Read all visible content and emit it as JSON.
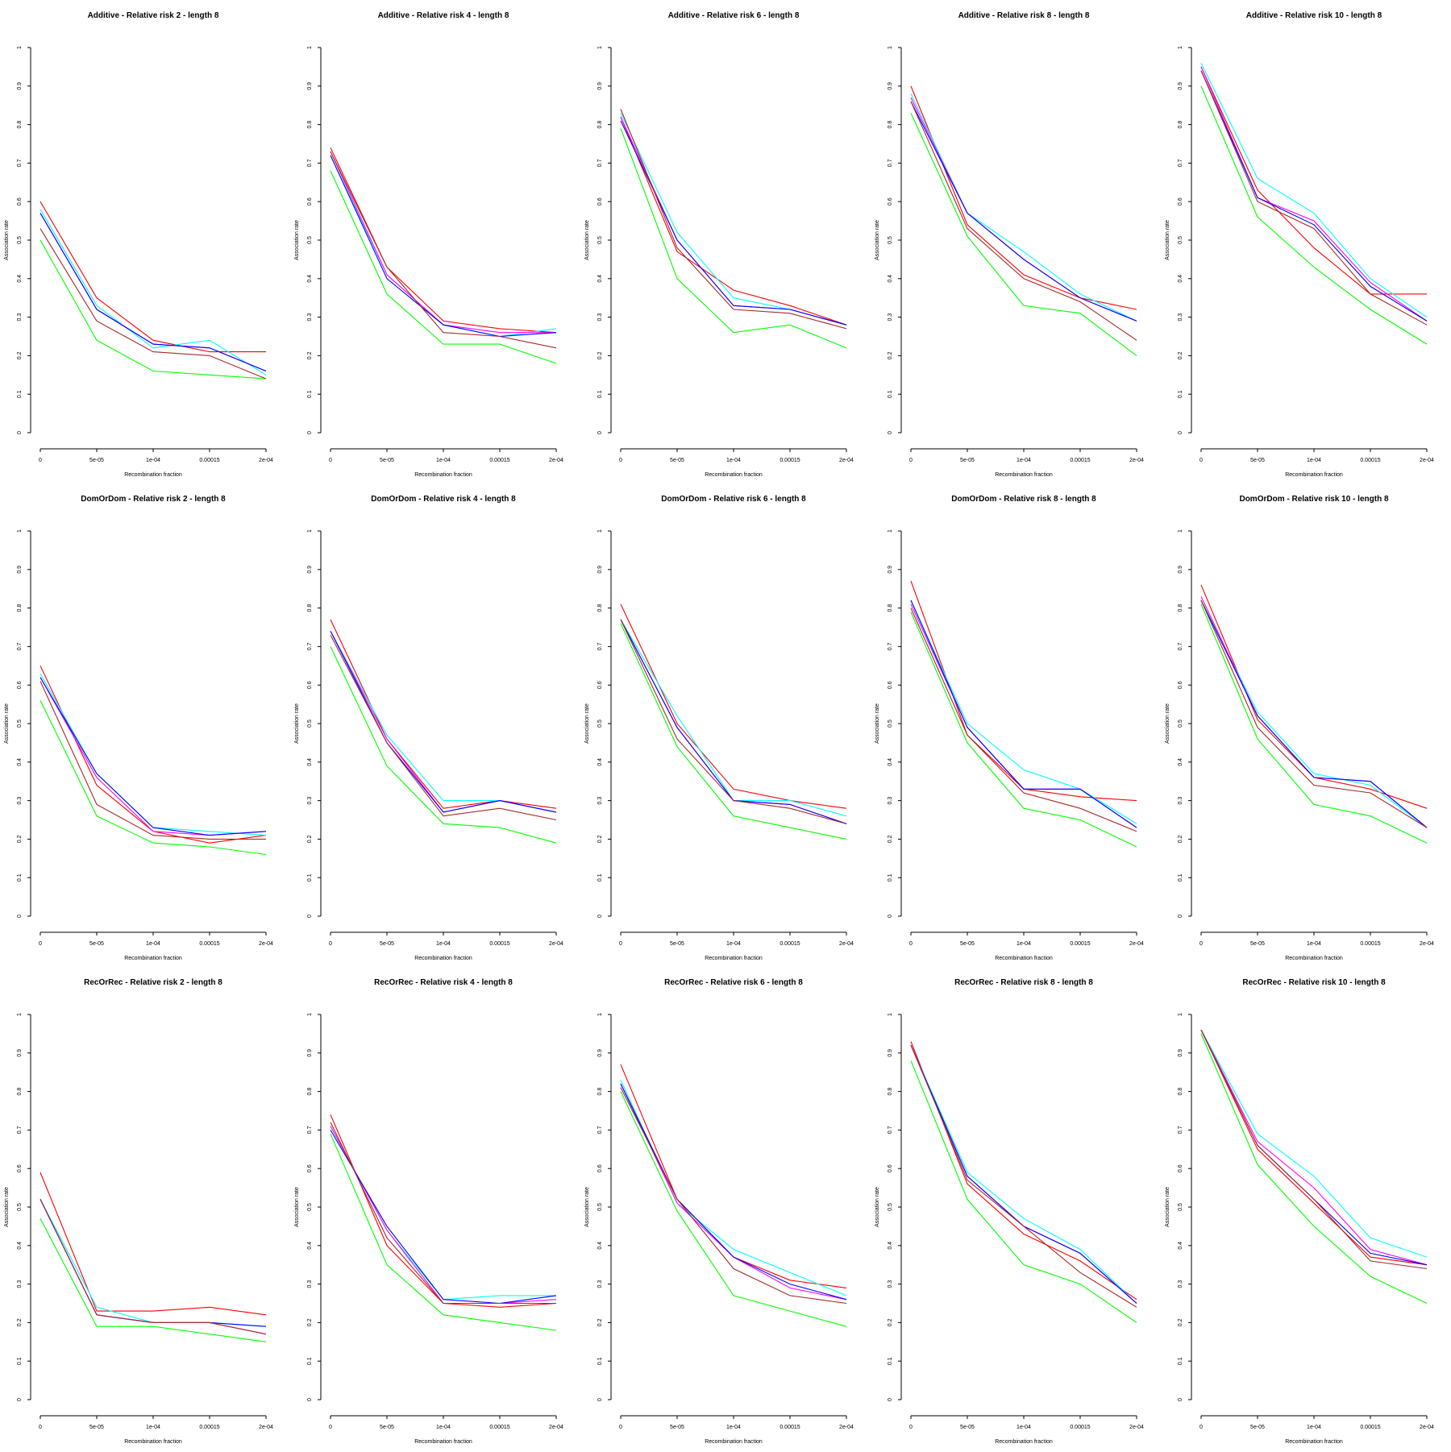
{
  "chart_data": {
    "type": "line",
    "layout": "3x5 grid of small multiples",
    "x": [
      "0",
      "5e-05",
      "1e-04",
      "0.00015",
      "2e-04"
    ],
    "xlabel": "Recombination fraction",
    "ylabel": "Association rate",
    "ylim": [
      0,
      1
    ],
    "yticks": [
      "0",
      "0.1",
      "0.2",
      "0.3",
      "0.4",
      "0.5",
      "0.6",
      "0.7",
      "0.8",
      "0.9",
      "1"
    ],
    "grid": false,
    "legend": "none",
    "series_colors": [
      "#ff0000",
      "#00ffff",
      "#ff00ff",
      "#0000ff",
      "#00ff00",
      "#a52a2a"
    ],
    "panels": [
      {
        "title": "Additive  - Relative risk 2 - length 8",
        "series": [
          {
            "color": "#ff0000",
            "values": [
              0.6,
              0.35,
              0.24,
              0.21,
              0.21
            ]
          },
          {
            "color": "#00ffff",
            "values": [
              0.58,
              0.33,
              0.22,
              0.24,
              0.15
            ]
          },
          {
            "color": "#ff00ff",
            "values": [
              0.57,
              0.32,
              0.23,
              0.22,
              0.16
            ]
          },
          {
            "color": "#0000ff",
            "values": [
              0.57,
              0.32,
              0.23,
              0.22,
              0.16
            ]
          },
          {
            "color": "#00ff00",
            "values": [
              0.5,
              0.24,
              0.16,
              0.15,
              0.14
            ]
          },
          {
            "color": "#a52a2a",
            "values": [
              0.53,
              0.29,
              0.21,
              0.2,
              0.14
            ]
          }
        ]
      },
      {
        "title": "Additive  - Relative risk 4 - length 8",
        "series": [
          {
            "color": "#ff0000",
            "values": [
              0.74,
              0.43,
              0.29,
              0.27,
              0.26
            ]
          },
          {
            "color": "#00ffff",
            "values": [
              0.72,
              0.41,
              0.28,
              0.25,
              0.27
            ]
          },
          {
            "color": "#ff00ff",
            "values": [
              0.73,
              0.41,
              0.28,
              0.26,
              0.26
            ]
          },
          {
            "color": "#0000ff",
            "values": [
              0.72,
              0.4,
              0.28,
              0.25,
              0.26
            ]
          },
          {
            "color": "#00ff00",
            "values": [
              0.68,
              0.36,
              0.23,
              0.23,
              0.18
            ]
          },
          {
            "color": "#a52a2a",
            "values": [
              0.73,
              0.43,
              0.26,
              0.25,
              0.22
            ]
          }
        ]
      },
      {
        "title": "Additive  - Relative risk 6 - length 8",
        "series": [
          {
            "color": "#ff0000",
            "values": [
              0.82,
              0.47,
              0.37,
              0.33,
              0.28
            ]
          },
          {
            "color": "#00ffff",
            "values": [
              0.83,
              0.52,
              0.35,
              0.32,
              0.28
            ]
          },
          {
            "color": "#ff00ff",
            "values": [
              0.82,
              0.5,
              0.33,
              0.32,
              0.28
            ]
          },
          {
            "color": "#0000ff",
            "values": [
              0.81,
              0.5,
              0.33,
              0.32,
              0.28
            ]
          },
          {
            "color": "#00ff00",
            "values": [
              0.79,
              0.4,
              0.26,
              0.28,
              0.22
            ]
          },
          {
            "color": "#a52a2a",
            "values": [
              0.84,
              0.48,
              0.32,
              0.31,
              0.27
            ]
          }
        ]
      },
      {
        "title": "Additive  - Relative risk 8 - length 8",
        "series": [
          {
            "color": "#ff0000",
            "values": [
              0.9,
              0.54,
              0.41,
              0.35,
              0.32
            ]
          },
          {
            "color": "#00ffff",
            "values": [
              0.88,
              0.57,
              0.47,
              0.36,
              0.29
            ]
          },
          {
            "color": "#ff00ff",
            "values": [
              0.87,
              0.57,
              0.45,
              0.35,
              0.29
            ]
          },
          {
            "color": "#0000ff",
            "values": [
              0.86,
              0.57,
              0.45,
              0.35,
              0.29
            ]
          },
          {
            "color": "#00ff00",
            "values": [
              0.83,
              0.51,
              0.33,
              0.31,
              0.2
            ]
          },
          {
            "color": "#a52a2a",
            "values": [
              0.86,
              0.53,
              0.4,
              0.34,
              0.24
            ]
          }
        ]
      },
      {
        "title": "Additive  - Relative risk 10 - length 8",
        "series": [
          {
            "color": "#ff0000",
            "values": [
              0.95,
              0.63,
              0.48,
              0.36,
              0.36
            ]
          },
          {
            "color": "#00ffff",
            "values": [
              0.96,
              0.66,
              0.57,
              0.4,
              0.3
            ]
          },
          {
            "color": "#ff00ff",
            "values": [
              0.95,
              0.61,
              0.55,
              0.39,
              0.29
            ]
          },
          {
            "color": "#0000ff",
            "values": [
              0.94,
              0.61,
              0.54,
              0.38,
              0.29
            ]
          },
          {
            "color": "#00ff00",
            "values": [
              0.9,
              0.56,
              0.43,
              0.32,
              0.23
            ]
          },
          {
            "color": "#a52a2a",
            "values": [
              0.94,
              0.6,
              0.53,
              0.36,
              0.28
            ]
          }
        ]
      },
      {
        "title": "DomOrDom  - Relative risk 2 - length 8",
        "series": [
          {
            "color": "#ff0000",
            "values": [
              0.65,
              0.34,
              0.22,
              0.19,
              0.21
            ]
          },
          {
            "color": "#00ffff",
            "values": [
              0.63,
              0.37,
              0.23,
              0.22,
              0.21
            ]
          },
          {
            "color": "#ff00ff",
            "values": [
              0.62,
              0.36,
              0.22,
              0.21,
              0.22
            ]
          },
          {
            "color": "#0000ff",
            "values": [
              0.62,
              0.37,
              0.23,
              0.21,
              0.22
            ]
          },
          {
            "color": "#00ff00",
            "values": [
              0.56,
              0.26,
              0.19,
              0.18,
              0.16
            ]
          },
          {
            "color": "#a52a2a",
            "values": [
              0.61,
              0.29,
              0.21,
              0.2,
              0.2
            ]
          }
        ]
      },
      {
        "title": "DomOrDom  - Relative risk 4 - length 8",
        "series": [
          {
            "color": "#ff0000",
            "values": [
              0.77,
              0.46,
              0.28,
              0.3,
              0.28
            ]
          },
          {
            "color": "#00ffff",
            "values": [
              0.74,
              0.47,
              0.3,
              0.3,
              0.27
            ]
          },
          {
            "color": "#ff00ff",
            "values": [
              0.74,
              0.46,
              0.27,
              0.3,
              0.27
            ]
          },
          {
            "color": "#0000ff",
            "values": [
              0.74,
              0.45,
              0.27,
              0.3,
              0.27
            ]
          },
          {
            "color": "#00ff00",
            "values": [
              0.7,
              0.39,
              0.24,
              0.23,
              0.19
            ]
          },
          {
            "color": "#a52a2a",
            "values": [
              0.73,
              0.45,
              0.26,
              0.28,
              0.25
            ]
          }
        ]
      },
      {
        "title": "DomOrDom  - Relative risk 6 - length 8",
        "series": [
          {
            "color": "#ff0000",
            "values": [
              0.81,
              0.5,
              0.33,
              0.3,
              0.28
            ]
          },
          {
            "color": "#00ffff",
            "values": [
              0.77,
              0.52,
              0.3,
              0.3,
              0.26
            ]
          },
          {
            "color": "#ff00ff",
            "values": [
              0.77,
              0.49,
              0.3,
              0.29,
              0.24
            ]
          },
          {
            "color": "#0000ff",
            "values": [
              0.77,
              0.49,
              0.3,
              0.29,
              0.24
            ]
          },
          {
            "color": "#00ff00",
            "values": [
              0.76,
              0.44,
              0.26,
              0.23,
              0.2
            ]
          },
          {
            "color": "#a52a2a",
            "values": [
              0.77,
              0.46,
              0.3,
              0.28,
              0.24
            ]
          }
        ]
      },
      {
        "title": "DomOrDom  - Relative risk 8 - length 8",
        "series": [
          {
            "color": "#ff0000",
            "values": [
              0.87,
              0.47,
              0.33,
              0.31,
              0.3
            ]
          },
          {
            "color": "#00ffff",
            "values": [
              0.82,
              0.5,
              0.38,
              0.33,
              0.24
            ]
          },
          {
            "color": "#ff00ff",
            "values": [
              0.81,
              0.49,
              0.33,
              0.33,
              0.23
            ]
          },
          {
            "color": "#0000ff",
            "values": [
              0.82,
              0.49,
              0.33,
              0.33,
              0.23
            ]
          },
          {
            "color": "#00ff00",
            "values": [
              0.79,
              0.45,
              0.28,
              0.25,
              0.18
            ]
          },
          {
            "color": "#a52a2a",
            "values": [
              0.8,
              0.47,
              0.32,
              0.28,
              0.22
            ]
          }
        ]
      },
      {
        "title": "DomOrDom  - Relative risk 10 - length 8",
        "series": [
          {
            "color": "#ff0000",
            "values": [
              0.86,
              0.51,
              0.36,
              0.33,
              0.28
            ]
          },
          {
            "color": "#00ffff",
            "values": [
              0.82,
              0.53,
              0.37,
              0.34,
              0.23
            ]
          },
          {
            "color": "#ff00ff",
            "values": [
              0.83,
              0.52,
              0.36,
              0.35,
              0.23
            ]
          },
          {
            "color": "#0000ff",
            "values": [
              0.82,
              0.52,
              0.36,
              0.35,
              0.23
            ]
          },
          {
            "color": "#00ff00",
            "values": [
              0.81,
              0.46,
              0.29,
              0.26,
              0.19
            ]
          },
          {
            "color": "#a52a2a",
            "values": [
              0.82,
              0.49,
              0.34,
              0.32,
              0.23
            ]
          }
        ]
      },
      {
        "title": "RecOrRec  - Relative risk 2 - length 8",
        "series": [
          {
            "color": "#ff0000",
            "values": [
              0.59,
              0.23,
              0.23,
              0.24,
              0.22
            ]
          },
          {
            "color": "#00ffff",
            "values": [
              0.52,
              0.24,
              0.2,
              0.2,
              0.19
            ]
          },
          {
            "color": "#ff00ff",
            "values": [
              0.52,
              0.22,
              0.2,
              0.2,
              0.17
            ]
          },
          {
            "color": "#0000ff",
            "values": [
              0.52,
              0.22,
              0.2,
              0.2,
              0.19
            ]
          },
          {
            "color": "#00ff00",
            "values": [
              0.47,
              0.19,
              0.19,
              0.17,
              0.15
            ]
          },
          {
            "color": "#a52a2a",
            "values": [
              0.52,
              0.22,
              0.2,
              0.2,
              0.17
            ]
          }
        ]
      },
      {
        "title": "RecOrRec  - Relative risk 4 - length 8",
        "series": [
          {
            "color": "#ff0000",
            "values": [
              0.74,
              0.4,
              0.25,
              0.24,
              0.25
            ]
          },
          {
            "color": "#00ffff",
            "values": [
              0.71,
              0.44,
              0.26,
              0.27,
              0.27
            ]
          },
          {
            "color": "#ff00ff",
            "values": [
              0.71,
              0.44,
              0.25,
              0.25,
              0.26
            ]
          },
          {
            "color": "#0000ff",
            "values": [
              0.7,
              0.45,
              0.26,
              0.25,
              0.27
            ]
          },
          {
            "color": "#00ff00",
            "values": [
              0.69,
              0.35,
              0.22,
              0.2,
              0.18
            ]
          },
          {
            "color": "#a52a2a",
            "values": [
              0.72,
              0.42,
              0.25,
              0.25,
              0.25
            ]
          }
        ]
      },
      {
        "title": "RecOrRec  - Relative risk 6 - length 8",
        "series": [
          {
            "color": "#ff0000",
            "values": [
              0.87,
              0.52,
              0.37,
              0.31,
              0.29
            ]
          },
          {
            "color": "#00ffff",
            "values": [
              0.83,
              0.51,
              0.39,
              0.33,
              0.27
            ]
          },
          {
            "color": "#ff00ff",
            "values": [
              0.82,
              0.51,
              0.37,
              0.29,
              0.26
            ]
          },
          {
            "color": "#0000ff",
            "values": [
              0.82,
              0.52,
              0.37,
              0.3,
              0.26
            ]
          },
          {
            "color": "#00ff00",
            "values": [
              0.8,
              0.49,
              0.27,
              0.23,
              0.19
            ]
          },
          {
            "color": "#a52a2a",
            "values": [
              0.81,
              0.52,
              0.34,
              0.27,
              0.25
            ]
          }
        ]
      },
      {
        "title": "RecOrRec  - Relative risk 8 - length 8",
        "series": [
          {
            "color": "#ff0000",
            "values": [
              0.93,
              0.56,
              0.43,
              0.36,
              0.26
            ]
          },
          {
            "color": "#00ffff",
            "values": [
              0.92,
              0.59,
              0.47,
              0.39,
              0.25
            ]
          },
          {
            "color": "#ff00ff",
            "values": [
              0.92,
              0.58,
              0.45,
              0.38,
              0.25
            ]
          },
          {
            "color": "#0000ff",
            "values": [
              0.92,
              0.58,
              0.45,
              0.38,
              0.25
            ]
          },
          {
            "color": "#00ff00",
            "values": [
              0.88,
              0.52,
              0.35,
              0.3,
              0.2
            ]
          },
          {
            "color": "#a52a2a",
            "values": [
              0.92,
              0.57,
              0.45,
              0.33,
              0.24
            ]
          }
        ]
      },
      {
        "title": "RecOrRec  - Relative risk 10 - length 8",
        "series": [
          {
            "color": "#ff0000",
            "values": [
              0.96,
              0.65,
              0.51,
              0.37,
              0.35
            ]
          },
          {
            "color": "#00ffff",
            "values": [
              0.96,
              0.69,
              0.58,
              0.42,
              0.37
            ]
          },
          {
            "color": "#ff00ff",
            "values": [
              0.96,
              0.67,
              0.55,
              0.39,
              0.35
            ]
          },
          {
            "color": "#0000ff",
            "values": [
              0.96,
              0.66,
              0.52,
              0.38,
              0.35
            ]
          },
          {
            "color": "#00ff00",
            "values": [
              0.95,
              0.61,
              0.45,
              0.32,
              0.25
            ]
          },
          {
            "color": "#a52a2a",
            "values": [
              0.96,
              0.66,
              0.52,
              0.36,
              0.34
            ]
          }
        ]
      }
    ]
  }
}
